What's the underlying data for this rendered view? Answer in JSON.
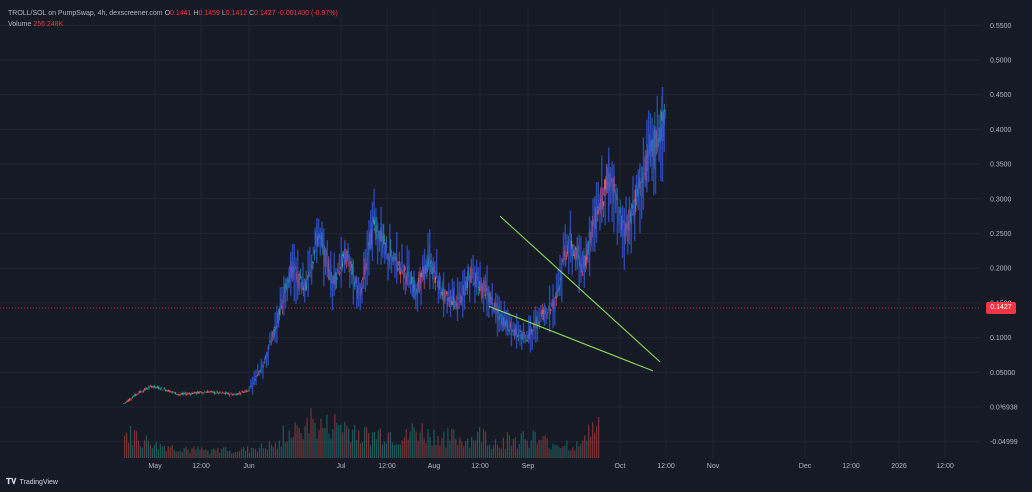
{
  "legend": {
    "symbol": "TROLL/SOL on PumpSwap, 4h, dexscreener.com",
    "open_label": "O",
    "open": "0.1441",
    "high_label": "H",
    "high": "0.1459",
    "low_label": "L",
    "low": "0.1412",
    "close_label": "C",
    "close": "0.1427",
    "change": "-0.001400 (-0.97%)",
    "volume_label": "Volume",
    "volume": "256.248K"
  },
  "last_price_tag": "0.1427",
  "brand": {
    "name": "TradingView",
    "icon": "tradingview-logo-icon"
  },
  "colors": {
    "background": "#161a25",
    "grid": "#1f2433",
    "candle_up": "#26a69a",
    "candle_down": "#ef5350",
    "overlay_line": "#2f4fc9",
    "trendline": "#8bd957",
    "last_price": "#f23645",
    "axis_text": "#b2b5be"
  },
  "chart_data": {
    "type": "line",
    "title": "",
    "xlabel": "",
    "ylabel": "",
    "y_axis_ticks": [
      "0.5500",
      "0.5000",
      "0.4500",
      "0.4000",
      "0.3500",
      "0.3000",
      "0.2500",
      "0.2000",
      "0.1500",
      "0.1000",
      "0.05000",
      "0.0³6938",
      "-0.04999"
    ],
    "y_axis_tick_values": [
      0.55,
      0.5,
      0.45,
      0.4,
      0.35,
      0.3,
      0.25,
      0.2,
      0.15,
      0.1,
      0.05,
      0.0,
      -0.05
    ],
    "x_axis_ticks": [
      "May",
      "12:00",
      "Jun",
      "Jul",
      "12:00",
      "Aug",
      "12:00",
      "Sep",
      "Oct",
      "12:00",
      "Nov",
      "Dec",
      "12:00",
      "2026",
      "12:00"
    ],
    "ylim": [
      -0.07,
      0.58
    ],
    "grid": true,
    "last_price": 0.1427,
    "series": [
      {
        "style": "candles_with_blue_overlay",
        "x": [
          "Apr 22",
          "May 1",
          "May 10",
          "May 20",
          "Jun 1",
          "Jun 15",
          "Jul 1",
          "Jul 15",
          "Jul 25",
          "Jul 31",
          "Aug 3",
          "Aug 6",
          "Aug 9",
          "Aug 12",
          "Aug 15",
          "Aug 18",
          "Aug 21",
          "Aug 24",
          "Aug 27",
          "Aug 30",
          "Sep 2",
          "Sep 5",
          "Sep 8",
          "Sep 11",
          "Sep 14",
          "Sep 17",
          "Sep 20",
          "Sep 23",
          "Sep 26",
          "Sep 29",
          "Oct 2",
          "Oct 5",
          "Oct 8",
          "Oct 11",
          "Oct 14",
          "Oct 17",
          "Oct 20",
          "Oct 23",
          "Oct 26",
          "Oct 29"
        ],
        "close": [
          0.005,
          0.02,
          0.03,
          0.025,
          0.018,
          0.02,
          0.022,
          0.02,
          0.018,
          0.025,
          0.06,
          0.12,
          0.2,
          0.17,
          0.25,
          0.18,
          0.22,
          0.16,
          0.27,
          0.22,
          0.2,
          0.17,
          0.21,
          0.16,
          0.15,
          0.19,
          0.17,
          0.13,
          0.11,
          0.1,
          0.13,
          0.15,
          0.24,
          0.2,
          0.28,
          0.33,
          0.25,
          0.31,
          0.37,
          0.42
        ]
      }
    ],
    "trendlines": [
      {
        "name": "upper",
        "from": {
          "x": "Aug 28",
          "y": 0.275
        },
        "to": {
          "x": "Oct 13",
          "y": 0.065
        }
      },
      {
        "name": "lower",
        "from": {
          "x": "Aug 19",
          "y": 0.145
        },
        "to": {
          "x": "Oct 11",
          "y": 0.052
        }
      }
    ],
    "volume": [
      0.55,
      0.4,
      0.3,
      0.25,
      0.2,
      0.18,
      0.22,
      0.2,
      0.25,
      0.3,
      0.6,
      0.9,
      0.75,
      0.8,
      0.7,
      0.55,
      0.6,
      0.5,
      0.65,
      0.55,
      0.5,
      0.45,
      0.55,
      0.4,
      0.45,
      0.5,
      0.4,
      0.35,
      0.3,
      0.7
    ]
  }
}
